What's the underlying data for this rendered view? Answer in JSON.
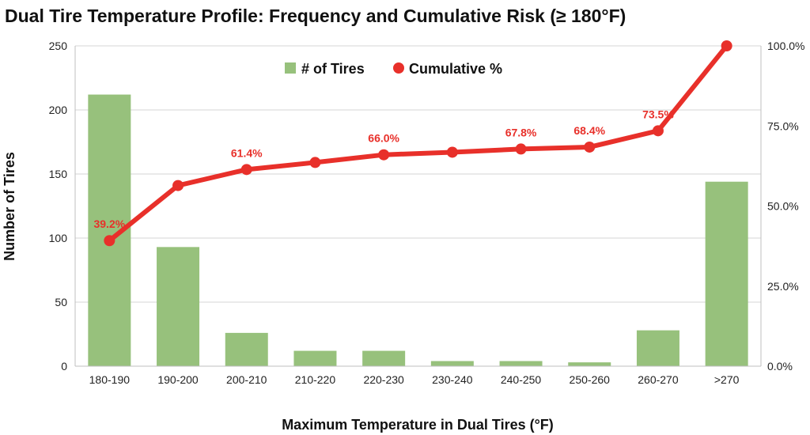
{
  "chart_data": {
    "type": "bar",
    "title": "Dual Tire Temperature Profile: Frequency and Cumulative Risk (≥ 180°F)",
    "xlabel": "Maximum Temperature in Dual Tires (°F)",
    "ylabel": "Number of Tires",
    "categories": [
      "180-190",
      "190-200",
      "200-210",
      "210-220",
      "220-230",
      "230-240",
      "240-250",
      "250-260",
      "260-270",
      ">270"
    ],
    "ylim": [
      0,
      250
    ],
    "y_ticks": [
      0,
      50,
      100,
      150,
      200,
      250
    ],
    "y2lim": [
      0,
      100
    ],
    "y2_ticks": [
      "0.0%",
      "25.0%",
      "50.0%",
      "75.0%",
      "100.0%"
    ],
    "grid": true,
    "legend_position": "top-center",
    "series": [
      {
        "name": "# of Tires",
        "type": "bar",
        "axis": "left",
        "color": "#97c17c",
        "values": [
          212,
          93,
          26,
          12,
          12,
          4,
          4,
          3,
          28,
          144
        ]
      },
      {
        "name": "Cumulative %",
        "type": "line",
        "axis": "right",
        "color": "#e8302a",
        "values": [
          39.2,
          56.4,
          61.4,
          63.6,
          66.0,
          66.8,
          67.8,
          68.4,
          73.5,
          100.0
        ]
      }
    ],
    "data_labels": [
      {
        "index": 0,
        "text": "39.2%"
      },
      {
        "index": 2,
        "text": "61.4%"
      },
      {
        "index": 4,
        "text": "66.0%"
      },
      {
        "index": 6,
        "text": "67.8%"
      },
      {
        "index": 7,
        "text": "68.4%"
      },
      {
        "index": 8,
        "text": "73.5%"
      }
    ]
  }
}
